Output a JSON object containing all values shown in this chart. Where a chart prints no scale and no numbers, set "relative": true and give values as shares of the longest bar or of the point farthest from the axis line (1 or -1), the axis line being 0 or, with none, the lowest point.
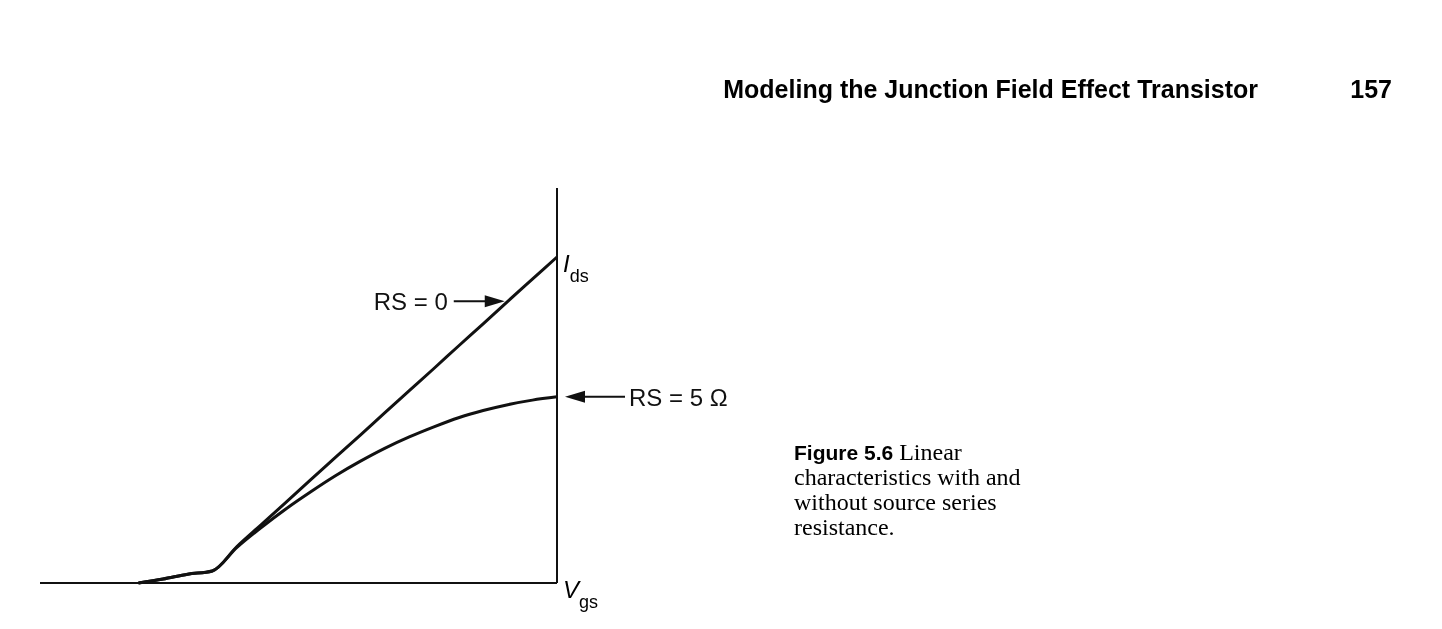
{
  "chart_data": {
    "type": "line",
    "title": "Modeling the Junction Field Effect Transistor",
    "xlabel": "V$_{gs}$",
    "ylabel": "I$_{ds}$",
    "relative": true,
    "annotations": [
      "157",
      "Figure 5.6 Linear characteristics with and without source series resistance."
    ],
    "categories": [
      null,
      null,
      null,
      null,
      null,
      null,
      null,
      null,
      null,
      null,
      null,
      null,
      null,
      null,
      null,
      null,
      null,
      null,
      null,
      null,
      null,
      null
    ],
    "series": [
      {
        "name": "RS = 0",
        "color": "#111111",
        "values": [
          null,
          null,
          null,
          null,
          0.0,
          0.012,
          0.027,
          0.037,
          0.112,
          0.18,
          0.248,
          0.317,
          0.385,
          0.453,
          0.522,
          0.59,
          0.658,
          0.727,
          0.795,
          0.864,
          0.932,
          1.0
        ]
      },
      {
        "name": "RS = 5 Ω",
        "color": "#111111",
        "values": [
          null,
          null,
          null,
          null,
          0.0,
          0.012,
          0.027,
          0.037,
          0.109,
          0.171,
          0.228,
          0.28,
          0.329,
          0.373,
          0.413,
          0.448,
          0.479,
          0.507,
          0.529,
          0.547,
          0.561,
          0.571
        ]
      }
    ]
  }
}
